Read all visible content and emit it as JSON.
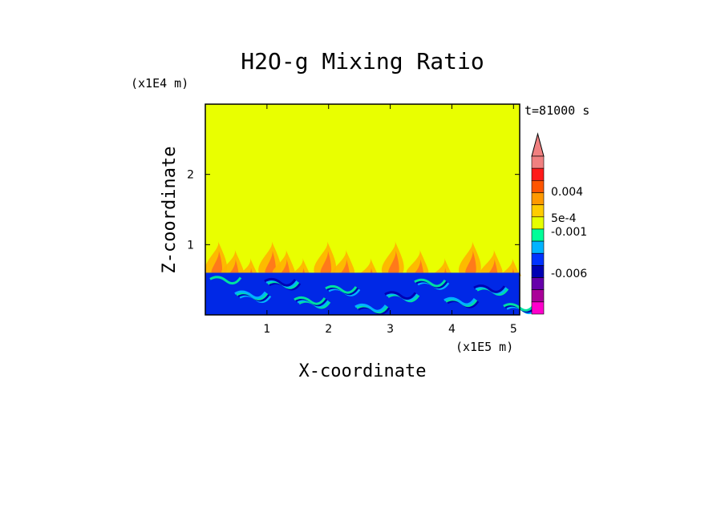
{
  "chart_data": {
    "type": "heatmap",
    "title": "H2O-g Mixing Ratio",
    "xlabel": "X-coordinate",
    "ylabel": "Z-coordinate",
    "x_multiplier": "(x1E5 m)",
    "y_multiplier": "(x1E4 m)",
    "time_label": "t=81000 s",
    "xlim": [
      0,
      5.1
    ],
    "ylim": [
      0,
      3.0
    ],
    "x_ticks": [
      "1",
      "2",
      "3",
      "4",
      "5"
    ],
    "y_ticks": [
      "1",
      "2"
    ],
    "colorbar_labels": [
      "0.004",
      "5e-4",
      "-0.001",
      "-0.006"
    ],
    "colorbar_colors": [
      "#f08080",
      "#ff1a1a",
      "#ff5500",
      "#ff9900",
      "#ffcc00",
      "#e6ff00",
      "#00ff99",
      "#00b3ff",
      "#0033ff",
      "#0000b3",
      "#6600aa",
      "#aa0099",
      "#ff00cc"
    ],
    "regions": {
      "upper_value_color": "#e9ff00",
      "lower_layer_top": 0.6,
      "lower_layer_color": "#0028e6",
      "plume_color": "#ff7a1a",
      "plume_top": 1.05
    }
  }
}
